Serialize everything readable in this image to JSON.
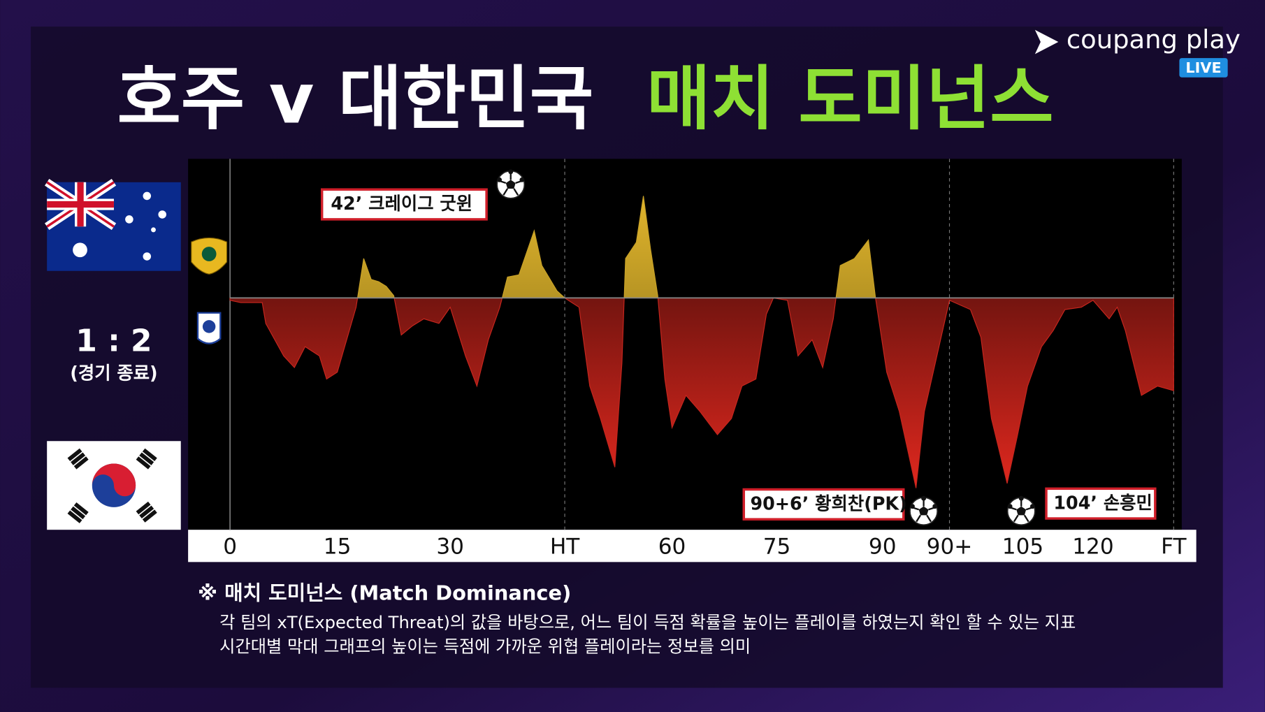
{
  "header": {
    "title_teams": "호주 v 대한민국",
    "title_highlight": "매치 도미넌스"
  },
  "logo": {
    "brand": "coupang play",
    "badge": "LIVE"
  },
  "score": {
    "result": "1 : 2",
    "status": "(경기 종료)"
  },
  "chart_data": {
    "type": "area",
    "x": [
      0,
      1.5,
      4.5,
      5,
      7.5,
      9,
      10.5,
      12.5,
      13.5,
      15,
      17.5,
      18.5,
      19.5,
      20.5,
      21.5,
      22.5,
      23.5,
      25,
      26.5,
      28.5,
      30,
      32,
      33.5,
      35,
      36.5,
      37.5,
      39,
      41,
      42,
      44,
      45,
      46,
      47,
      48.5,
      50,
      52,
      53,
      53.5,
      55,
      56,
      57,
      58,
      59,
      60,
      62,
      64,
      66.5,
      68.5,
      70,
      72,
      73.5,
      74.5,
      76.5,
      78,
      80,
      81.5,
      83,
      84,
      86,
      88,
      89,
      90.5,
      92,
      94,
      95,
      96.5,
      98,
      100,
      101,
      102,
      103.5,
      104.5,
      106,
      109,
      111.5,
      114,
      117.5,
      120,
      121,
      121.5,
      122,
      123,
      124,
      125
    ],
    "series": [
      {
        "color_positive": "#c9a227",
        "color_negative": "#c8261e",
        "values": [
          -0.01,
          -0.02,
          -0.02,
          -0.11,
          -0.25,
          -0.3,
          -0.21,
          -0.25,
          -0.35,
          -0.32,
          -0.04,
          0.17,
          0.08,
          0.07,
          0.05,
          0.01,
          -0.16,
          -0.12,
          -0.09,
          -0.11,
          -0.04,
          -0.25,
          -0.38,
          -0.18,
          -0.04,
          0.09,
          0.1,
          0.29,
          0.14,
          0.03,
          0,
          -0.02,
          -0.04,
          -0.38,
          -0.52,
          -0.73,
          -0.28,
          0.17,
          0.24,
          0.44,
          0.21,
          0.01,
          -0.35,
          -0.56,
          -0.42,
          -0.49,
          -0.59,
          -0.52,
          -0.38,
          -0.35,
          -0.07,
          0,
          -0.01,
          -0.25,
          -0.18,
          -0.3,
          -0.09,
          0.14,
          0.17,
          0.25,
          0,
          -0.32,
          -0.49,
          -0.82,
          -0.49,
          -0.25,
          -0.01,
          -0.05,
          -0.17,
          -0.52,
          -0.8,
          -0.59,
          -0.38,
          -0.21,
          -0.14,
          -0.05,
          -0.04,
          -0.01,
          -0.09,
          -0.04,
          -0.14,
          -0.42,
          -0.38,
          -0.4
        ]
      }
    ],
    "xlim": [
      0,
      125
    ],
    "xticks": [
      0,
      15,
      30,
      {
        "value": 45,
        "label": "HT"
      },
      60,
      75,
      90,
      {
        "value": 98,
        "label": "90+"
      },
      105,
      120,
      {
        "value": 125,
        "label": "FT"
      }
    ],
    "ylim": [
      -1,
      0.6
    ],
    "annotations": [
      "42’ 크레이그 굿윈",
      "90+6’ 황희찬(PK)",
      "104’ 손흥민"
    ]
  },
  "note": {
    "heading": "※ 매치 도미넌스 (Match Dominance)",
    "lines": [
      "각 팀의 xT(Expected Threat)의 값을 바탕으로, 어느 팀이 득점 확률을 높이는 플레이를 하였는지 확인 할 수 있는 지표",
      "시간대별 막대 그래프의 높이는 득점에 가까운 위협 플레이라는 정보를 의미"
    ]
  }
}
